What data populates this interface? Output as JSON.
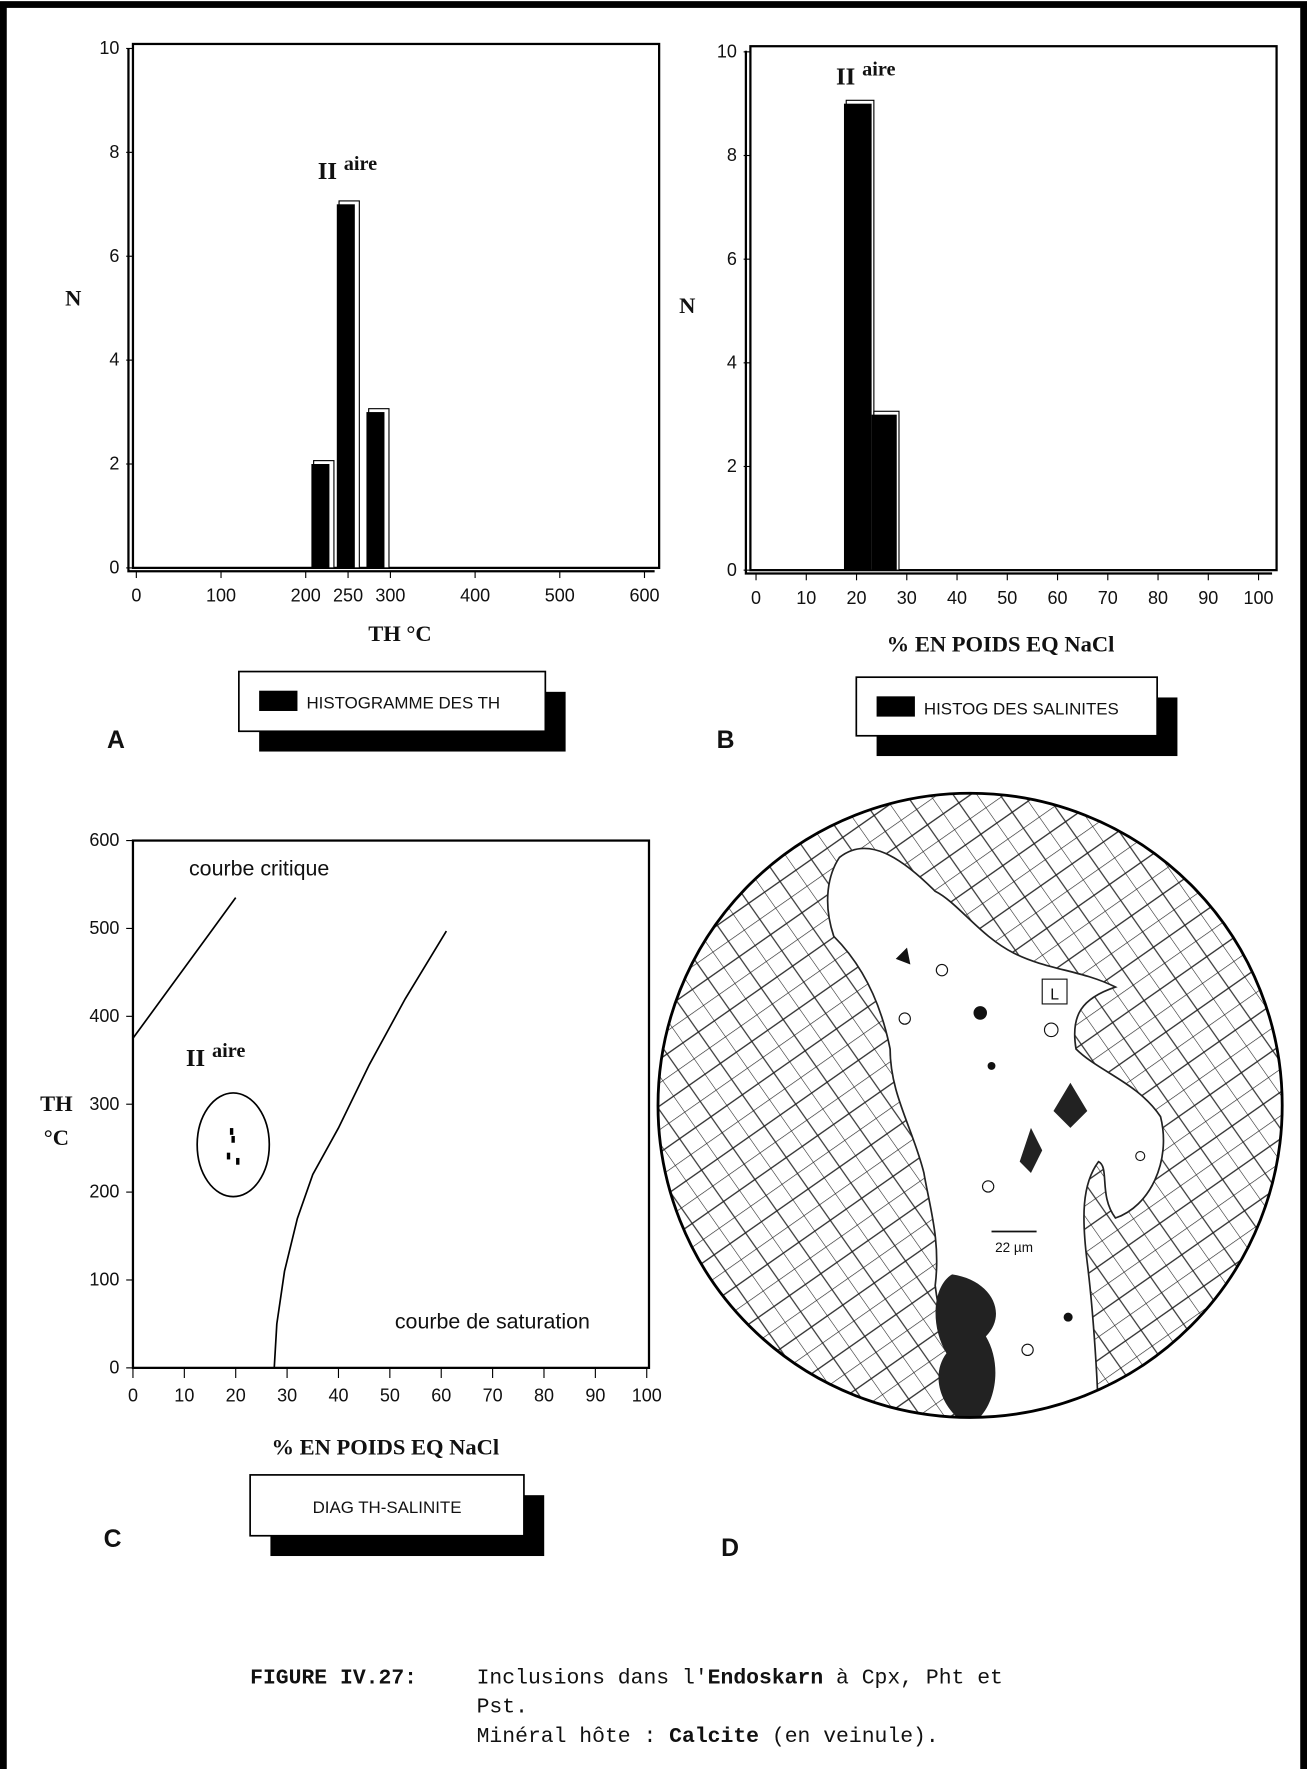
{
  "chart_data": [
    {
      "type": "bar",
      "panel": "A",
      "annotation": "II",
      "annotation_sup": "aire",
      "x": [
        220,
        250,
        285
      ],
      "values": [
        2,
        7,
        3
      ],
      "color": "#000000",
      "xlim": [
        0,
        600
      ],
      "xticks": [
        0,
        100,
        200,
        250,
        300,
        400,
        500,
        600
      ],
      "ylim": [
        0,
        10
      ],
      "yticks": [
        0,
        2,
        4,
        6,
        8,
        10
      ],
      "xlabel": "TH °C",
      "ylabel": "N",
      "legend": "HISTOGRAMME DES TH"
    },
    {
      "type": "histogram",
      "panel": "B",
      "annotation": "II",
      "annotation_sup": "aire",
      "bins": [
        17.5,
        23,
        28
      ],
      "values": [
        9,
        3
      ],
      "color": "#000000",
      "xlim": [
        0,
        100
      ],
      "xticks": [
        0,
        10,
        20,
        30,
        40,
        50,
        60,
        70,
        80,
        90,
        100
      ],
      "ylim": [
        0,
        10
      ],
      "yticks": [
        0,
        2,
        4,
        6,
        8,
        10
      ],
      "xlabel": "% EN POIDS EQ NaCl",
      "ylabel": "N",
      "legend": "HISTOG DES SALINITES"
    },
    {
      "type": "scatter",
      "panel": "C",
      "annotation": "II",
      "annotation_sup": "aire",
      "points": {
        "x": [
          19.2,
          19.5,
          18.6,
          20.4
        ],
        "y": [
          269,
          260,
          241,
          235
        ]
      },
      "curves": [
        {
          "label": "courbe critique",
          "x": [
            0,
            5,
            10,
            15,
            20
          ],
          "y": [
            375,
            415,
            455,
            495,
            535
          ]
        },
        {
          "label": "courbe de saturation",
          "x": [
            27.5,
            28,
            29.5,
            32,
            35,
            40,
            46,
            53,
            61
          ],
          "y": [
            0,
            50,
            110,
            170,
            220,
            273,
            345,
            420,
            497
          ]
        }
      ],
      "xlim": [
        0,
        100
      ],
      "xticks": [
        0,
        10,
        20,
        30,
        40,
        50,
        60,
        70,
        80,
        90,
        100
      ],
      "ylim": [
        0,
        600
      ],
      "yticks": [
        0,
        100,
        200,
        300,
        400,
        500,
        600
      ],
      "xlabel": "% EN POIDS EQ NaCl",
      "ylabel": [
        "TH",
        "°C"
      ],
      "legend": "DIAG TH-SALINITE"
    }
  ],
  "figure_d": {
    "panel": "D",
    "labels": [
      "L",
      "22 µm"
    ]
  },
  "caption": {
    "number": "FIGURE IV.27:",
    "line1": [
      "Inclusions dans l'",
      "Endoskarn",
      " à Cpx, Pht et"
    ],
    "line2": "Pst.",
    "line3": [
      "Minéral hôte : ",
      "Calcite",
      " (en veinule)."
    ]
  }
}
